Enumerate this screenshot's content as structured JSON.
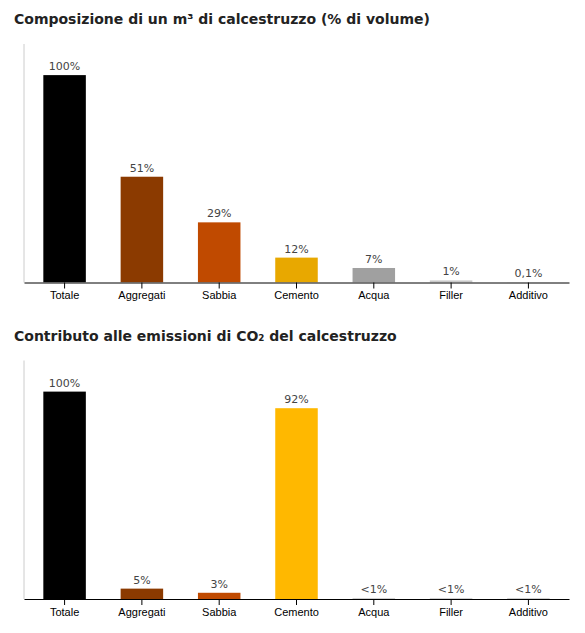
{
  "chart_data": [
    {
      "type": "bar",
      "title": "Composizione di un m³ di calcestruzzo (% di volume)",
      "categories": [
        "Totale",
        "Aggregati",
        "Sabbia",
        "Cemento",
        "Acqua",
        "Filler",
        "Additivo"
      ],
      "values": [
        100,
        51,
        29,
        12,
        7,
        1,
        0.1
      ],
      "value_labels": [
        "100%",
        "51%",
        "29%",
        "12%",
        "7%",
        "1%",
        "0,1%"
      ],
      "colors": [
        "#000000",
        "#8B3A00",
        "#C04A00",
        "#E8A800",
        "#A0A0A0",
        "#C8C8C8",
        "#C8C8C8"
      ],
      "ylim": [
        0,
        115
      ],
      "data_labels": true,
      "tick_labels": "x",
      "grid": false
    },
    {
      "type": "bar",
      "title": "Contributo alle emissioni di CO₂ del calcestruzzo",
      "categories": [
        "Totale",
        "Aggregati",
        "Sabbia",
        "Cemento",
        "Acqua",
        "Filler",
        "Additivo"
      ],
      "values": [
        100,
        5,
        3,
        92,
        0.5,
        0.5,
        0.5
      ],
      "value_labels": [
        "100%",
        "5%",
        "3%",
        "92%",
        "<1%",
        "<1%",
        "<1%"
      ],
      "colors": [
        "#000000",
        "#8B3A00",
        "#C04A00",
        "#FFB800",
        "#D0D0D0",
        "#D0D0D0",
        "#D0D0D0"
      ],
      "ylim": [
        0,
        115
      ],
      "data_labels": true,
      "tick_labels": "x",
      "grid": false
    }
  ]
}
